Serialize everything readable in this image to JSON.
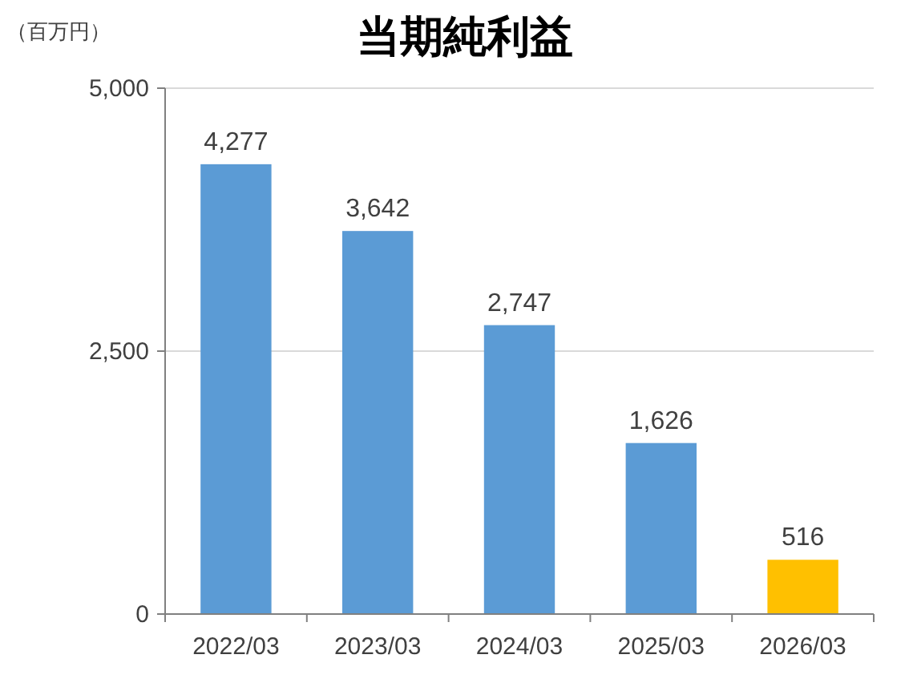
{
  "chart_data": {
    "type": "bar",
    "title": "当期純利益",
    "ylabel": "（百万円）",
    "categories": [
      "2022/03",
      "2023/03",
      "2024/03",
      "2025/03",
      "2026/03"
    ],
    "values": [
      4277,
      3642,
      2747,
      1626,
      516
    ],
    "colors": [
      "#5b9bd5",
      "#5b9bd5",
      "#5b9bd5",
      "#5b9bd5",
      "#ffc000"
    ],
    "value_labels": [
      "4,277",
      "3,642",
      "2,747",
      "1,626",
      "516"
    ],
    "ylim": [
      0,
      5000
    ],
    "yticks": [
      0,
      {
        "value": 2500,
        "label": "2,500"
      },
      {
        "value": 5000,
        "label": "5,000"
      }
    ],
    "grid": "y"
  }
}
